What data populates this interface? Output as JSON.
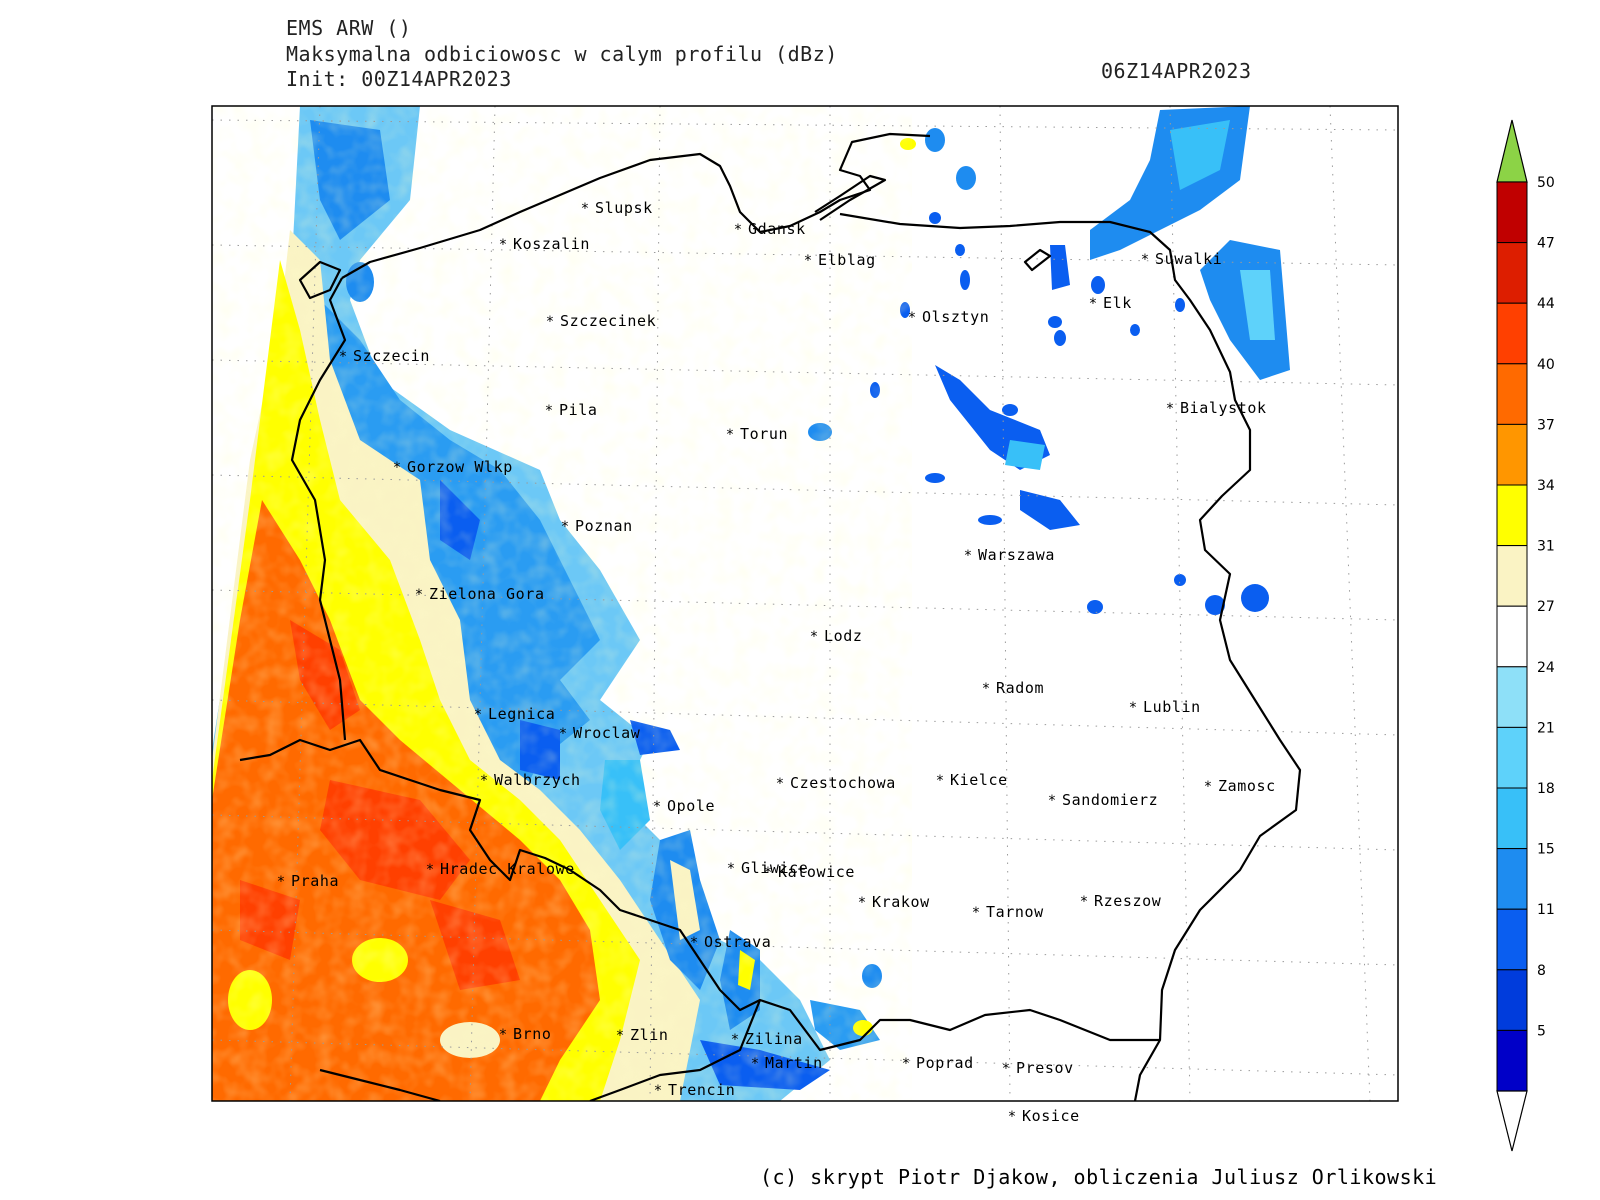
{
  "header": {
    "line1": "EMS ARW ()",
    "line2": "Maksymalna odbiciowosc w calym profilu (dBz)",
    "line3": "Init: 00Z14APR2023",
    "valid_time": "06Z14APR2023"
  },
  "footer": {
    "credit": "(c) skrypt Piotr Djakow, obliczenia Juliusz Orlikowski"
  },
  "legend": {
    "ticks": [
      "50",
      "47",
      "44",
      "40",
      "37",
      "34",
      "31",
      "27",
      "24",
      "21",
      "18",
      "15",
      "11",
      "8",
      "5"
    ],
    "colors": [
      "#c00000",
      "#dd1e00",
      "#ff4000",
      "#ff6a00",
      "#ff9600",
      "#ffff00",
      "#faf3c4",
      "#ffffff",
      "#8ee0f8",
      "#5ed2fa",
      "#38c0f8",
      "#1e8cf0",
      "#0a5ef0",
      "#003cdc",
      "#0000c8"
    ],
    "top_arrow_color": "#8cd346",
    "bottom_arrow_color": "#ffffff"
  },
  "cities": [
    {
      "name": "Slupsk"
    },
    {
      "name": "Koszalin"
    },
    {
      "name": "Gdansk"
    },
    {
      "name": "Elblag"
    },
    {
      "name": "Suwalki"
    },
    {
      "name": "Elk"
    },
    {
      "name": "Olsztyn"
    },
    {
      "name": "Szczecinek"
    },
    {
      "name": "Szczecin"
    },
    {
      "name": "Pila"
    },
    {
      "name": "Torun"
    },
    {
      "name": "Bialystok"
    },
    {
      "name": "Gorzow Wlkp"
    },
    {
      "name": "Poznan"
    },
    {
      "name": "Warszawa"
    },
    {
      "name": "Zielona Gora"
    },
    {
      "name": "Lodz"
    },
    {
      "name": "Radom"
    },
    {
      "name": "Lublin"
    },
    {
      "name": "Legnica"
    },
    {
      "name": "Wroclaw"
    },
    {
      "name": "Walbrzych"
    },
    {
      "name": "Czestochowa"
    },
    {
      "name": "Kielce"
    },
    {
      "name": "Zamosc"
    },
    {
      "name": "Sandomierz"
    },
    {
      "name": "Opole"
    },
    {
      "name": "Praha"
    },
    {
      "name": "Hradec Kralowe"
    },
    {
      "name": "Gliwice"
    },
    {
      "name": "Katowice"
    },
    {
      "name": "Krakow"
    },
    {
      "name": "Tarnow"
    },
    {
      "name": "Rzeszow"
    },
    {
      "name": "Ostrava"
    },
    {
      "name": "Brno"
    },
    {
      "name": "Zlin"
    },
    {
      "name": "Zilina"
    },
    {
      "name": "Martin"
    },
    {
      "name": "Poprad"
    },
    {
      "name": "Presov"
    },
    {
      "name": "Trencin"
    },
    {
      "name": "Kosice"
    }
  ]
}
